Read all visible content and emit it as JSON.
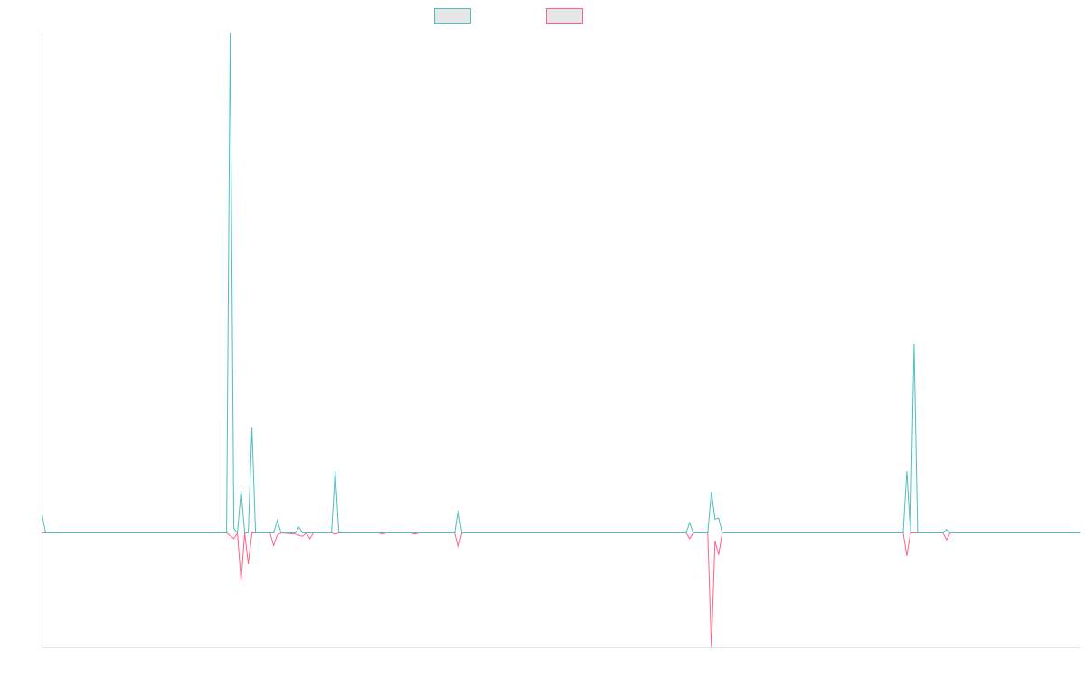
{
  "colors": {
    "series_1": "#4bc0c0",
    "series_2": "#ff6384",
    "legend_fill": "#e6e6e6",
    "axis": "#e6e6e6",
    "background": "#ffffff"
  },
  "chart_data": {
    "type": "line",
    "title": "",
    "xlabel": "",
    "ylabel": "",
    "grid": false,
    "legend": "top-center",
    "x_count": 288,
    "ylim": [
      -1,
      4.36
    ],
    "series": [
      {
        "color": "#4bc0c0",
        "points": [
          [
            0,
            0.16
          ],
          [
            1,
            0
          ],
          [
            51,
            0
          ],
          [
            52,
            4.36
          ],
          [
            53,
            0.04
          ],
          [
            54,
            0
          ],
          [
            55,
            0.37
          ],
          [
            56,
            0
          ],
          [
            57,
            0
          ],
          [
            58,
            0.92
          ],
          [
            59,
            0
          ],
          [
            64,
            0
          ],
          [
            65,
            0.11
          ],
          [
            66,
            0.01
          ],
          [
            67,
            0
          ],
          [
            70,
            0
          ],
          [
            71,
            0.05
          ],
          [
            72,
            0
          ],
          [
            80,
            0
          ],
          [
            81,
            0.54
          ],
          [
            82,
            0.01
          ],
          [
            83,
            0
          ],
          [
            114,
            0
          ],
          [
            115,
            0.2
          ],
          [
            116,
            0
          ],
          [
            178,
            0
          ],
          [
            179,
            0.09
          ],
          [
            180,
            0
          ],
          [
            184,
            0
          ],
          [
            185,
            0.36
          ],
          [
            186,
            0.12
          ],
          [
            187,
            0.13
          ],
          [
            188,
            0
          ],
          [
            238,
            0
          ],
          [
            239,
            0.54
          ],
          [
            240,
            0
          ],
          [
            241,
            1.65
          ],
          [
            242,
            0
          ],
          [
            249,
            0
          ],
          [
            250,
            0.03
          ],
          [
            251,
            0
          ],
          [
            287,
            0
          ]
        ]
      },
      {
        "color": "#ff6384",
        "points": [
          [
            0,
            0
          ],
          [
            51,
            0
          ],
          [
            53,
            -0.05
          ],
          [
            54,
            0
          ],
          [
            55,
            -0.42
          ],
          [
            56,
            0
          ],
          [
            57,
            -0.27
          ],
          [
            58,
            0
          ],
          [
            63,
            0
          ],
          [
            64,
            -0.11
          ],
          [
            65,
            -0.02
          ],
          [
            66,
            0
          ],
          [
            70,
            -0.01
          ],
          [
            72,
            -0.03
          ],
          [
            73,
            0
          ],
          [
            74,
            -0.05
          ],
          [
            75,
            0
          ],
          [
            80,
            0
          ],
          [
            81,
            -0.01
          ],
          [
            82,
            0
          ],
          [
            93,
            0
          ],
          [
            94,
            -0.01
          ],
          [
            95,
            0
          ],
          [
            102,
            0
          ],
          [
            103,
            -0.01
          ],
          [
            104,
            0
          ],
          [
            114,
            0
          ],
          [
            115,
            -0.13
          ],
          [
            116,
            0
          ],
          [
            178,
            0
          ],
          [
            179,
            -0.05
          ],
          [
            180,
            0
          ],
          [
            184,
            0
          ],
          [
            185,
            -1
          ],
          [
            186,
            -0.07
          ],
          [
            187,
            -0.19
          ],
          [
            188,
            0
          ],
          [
            238,
            0
          ],
          [
            239,
            -0.2
          ],
          [
            240,
            0
          ],
          [
            249,
            0
          ],
          [
            250,
            -0.06
          ],
          [
            251,
            0
          ],
          [
            287,
            0
          ]
        ]
      }
    ]
  }
}
